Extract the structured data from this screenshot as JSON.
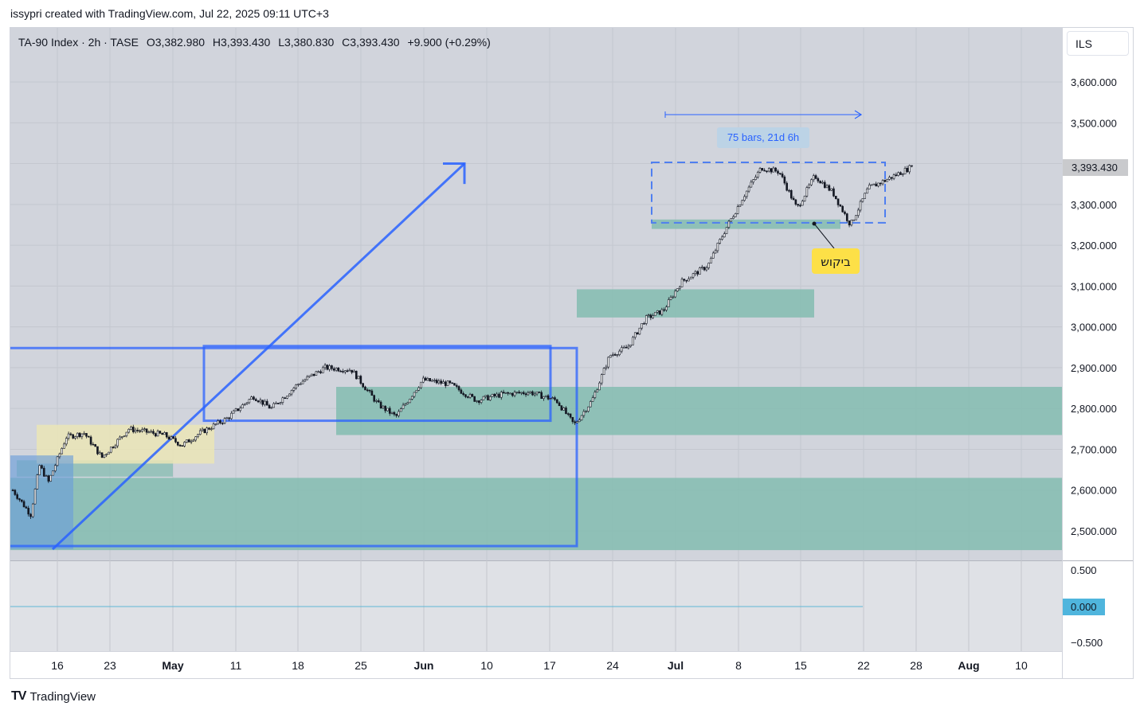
{
  "header": {
    "attribution": "issypri created with TradingView.com, Jul 22, 2025 09:11 UTC+3"
  },
  "legend": {
    "symbol": "TA-90 Index · 2h · TASE",
    "open": "O3,382.980",
    "high": "H3,393.430",
    "low": "L3,380.830",
    "close": "C3,393.430",
    "change": "+9.900 (+0.29%)"
  },
  "currency_button": "ILS",
  "footer": {
    "logo": "TV",
    "brand": "TradingView"
  },
  "colors": {
    "plot_bg": "#d1d4dc",
    "oscillator_bg": "#dfe1e6",
    "zone_teal": "#84bcb0",
    "zone_yellow": "#ebe5b6",
    "drawing_blue": "#2962ff",
    "annotation_yellow": "#fde047",
    "last_price_bg": "#c9cacd",
    "zero_label_bg": "#4fb5dd"
  },
  "chart_data": [
    {
      "type": "candlestick",
      "symbol": "TA-90 Index",
      "interval": "2h",
      "exchange": "TASE",
      "currency": "ILS",
      "x_ticks": [
        "16",
        "23",
        "May",
        "11",
        "18",
        "25",
        "Jun",
        "10",
        "17",
        "24",
        "Jul",
        "8",
        "15",
        "22",
        "28",
        "Aug",
        "10"
      ],
      "y_ticks": [
        "3,600.000",
        "3,500.000",
        "3,400.000",
        "3,300.000",
        "3,200.000",
        "3,100.000",
        "3,000.000",
        "2,900.000",
        "2,800.000",
        "2,700.000",
        "2,600.000",
        "2,500.000"
      ],
      "ylim": [
        2475,
        3695
      ],
      "last_price_label": "3,393.430",
      "close_path": [
        {
          "x": "Apr 11",
          "y": 2600
        },
        {
          "x": "Apr 13",
          "y": 2540
        },
        {
          "x": "Apr 14",
          "y": 2660
        },
        {
          "x": "Apr 15",
          "y": 2620
        },
        {
          "x": "Apr 17",
          "y": 2730
        },
        {
          "x": "Apr 19",
          "y": 2740
        },
        {
          "x": "Apr 21",
          "y": 2680
        },
        {
          "x": "Apr 24",
          "y": 2750
        },
        {
          "x": "Apr 28",
          "y": 2735
        },
        {
          "x": "Apr 30",
          "y": 2710
        },
        {
          "x": "May 2",
          "y": 2740
        },
        {
          "x": "May 5",
          "y": 2775
        },
        {
          "x": "May 8",
          "y": 2830
        },
        {
          "x": "May 10",
          "y": 2800
        },
        {
          "x": "May 13",
          "y": 2860
        },
        {
          "x": "May 16",
          "y": 2900
        },
        {
          "x": "May 19",
          "y": 2895
        },
        {
          "x": "May 22",
          "y": 2810
        },
        {
          "x": "May 24",
          "y": 2780
        },
        {
          "x": "May 27",
          "y": 2870
        },
        {
          "x": "May 30",
          "y": 2860
        },
        {
          "x": "Jun 2",
          "y": 2820
        },
        {
          "x": "Jun 5",
          "y": 2835
        },
        {
          "x": "Jun 8",
          "y": 2840
        },
        {
          "x": "Jun 11",
          "y": 2820
        },
        {
          "x": "Jun 13",
          "y": 2760
        },
        {
          "x": "Jun 15",
          "y": 2820
        },
        {
          "x": "Jun 17",
          "y": 2930
        },
        {
          "x": "Jun 19",
          "y": 2950
        },
        {
          "x": "Jun 21",
          "y": 3020
        },
        {
          "x": "Jun 23",
          "y": 3040
        },
        {
          "x": "Jun 25",
          "y": 3110
        },
        {
          "x": "Jun 28",
          "y": 3150
        },
        {
          "x": "Jun 30",
          "y": 3240
        },
        {
          "x": "Jul 2",
          "y": 3320
        },
        {
          "x": "Jul 4",
          "y": 3390
        },
        {
          "x": "Jul 6",
          "y": 3380
        },
        {
          "x": "Jul 8",
          "y": 3290
        },
        {
          "x": "Jul 10",
          "y": 3370
        },
        {
          "x": "Jul 12",
          "y": 3330
        },
        {
          "x": "Jul 14",
          "y": 3250
        },
        {
          "x": "Jul 16",
          "y": 3340
        },
        {
          "x": "Jul 18",
          "y": 3360
        },
        {
          "x": "Jul 21",
          "y": 3393.43
        }
      ],
      "annotations": {
        "date_range_label": "75 bars, 21d 6h",
        "demand_label": "ביקוש"
      }
    },
    {
      "type": "line",
      "panel": "oscillator",
      "y_ticks": [
        "0.500",
        "−0.500"
      ],
      "value_label": "0.000",
      "ylim": [
        -0.5,
        0.5
      ]
    }
  ]
}
